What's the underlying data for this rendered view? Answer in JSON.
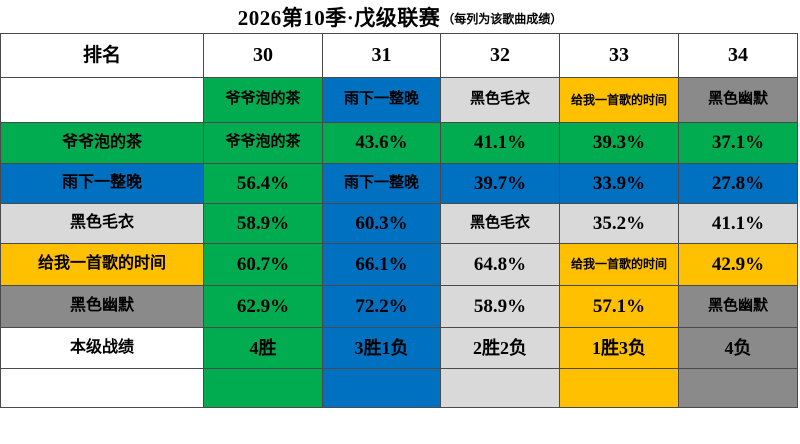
{
  "title": {
    "main": "2026第10季·戊级联赛",
    "note": "（每列为该歌曲成绩）"
  },
  "colors": {
    "white": "#FFFFFF",
    "green": "#00AC4F",
    "blue": "#0070C0",
    "lgray": "#D9D9D9",
    "gold": "#FFC000",
    "dgray": "#8A8A8A",
    "border": "#4A4A4A",
    "text": "#000000"
  },
  "header": {
    "rank_label": "排名",
    "ranks": [
      "30",
      "31",
      "32",
      "33",
      "34"
    ]
  },
  "songs": [
    {
      "rank": "30",
      "name": "爷爷泡的茶",
      "color": "green",
      "result": "4胜"
    },
    {
      "rank": "31",
      "name": "雨下一整晚",
      "color": "blue",
      "result": "3胜1负"
    },
    {
      "rank": "32",
      "name": "黑色毛衣",
      "color": "lgray",
      "result": "2胜2负"
    },
    {
      "rank": "33",
      "name": "给我一首歌的时间",
      "color": "gold",
      "result": "1胜3负"
    },
    {
      "rank": "34",
      "name": "黑色幽默",
      "color": "dgray",
      "result": "4负"
    }
  ],
  "table": {
    "rows": [
      {
        "label": {
          "text": "",
          "color": "white"
        },
        "cells": [
          {
            "text": "爷爷泡的茶",
            "color": "green"
          },
          {
            "text": "雨下一整晚",
            "color": "blue"
          },
          {
            "text": "黑色毛衣",
            "color": "lgray"
          },
          {
            "text": "给我一首歌的时间",
            "color": "gold"
          },
          {
            "text": "黑色幽默",
            "color": "dgray"
          }
        ]
      },
      {
        "label": {
          "text": "爷爷泡的茶",
          "color": "green"
        },
        "cells": [
          {
            "text": "爷爷泡的茶",
            "color": "green"
          },
          {
            "text": "43.6%",
            "color": "green"
          },
          {
            "text": "41.1%",
            "color": "green"
          },
          {
            "text": "39.3%",
            "color": "green"
          },
          {
            "text": "37.1%",
            "color": "green"
          }
        ]
      },
      {
        "label": {
          "text": "雨下一整晚",
          "color": "blue"
        },
        "cells": [
          {
            "text": "56.4%",
            "color": "green"
          },
          {
            "text": "雨下一整晚",
            "color": "blue"
          },
          {
            "text": "39.7%",
            "color": "blue"
          },
          {
            "text": "33.9%",
            "color": "blue"
          },
          {
            "text": "27.8%",
            "color": "blue"
          }
        ]
      },
      {
        "label": {
          "text": "黑色毛衣",
          "color": "lgray"
        },
        "cells": [
          {
            "text": "58.9%",
            "color": "green"
          },
          {
            "text": "60.3%",
            "color": "blue"
          },
          {
            "text": "黑色毛衣",
            "color": "lgray"
          },
          {
            "text": "35.2%",
            "color": "lgray"
          },
          {
            "text": "41.1%",
            "color": "lgray"
          }
        ]
      },
      {
        "label": {
          "text": "给我一首歌的时间",
          "color": "gold"
        },
        "cells": [
          {
            "text": "60.7%",
            "color": "green"
          },
          {
            "text": "66.1%",
            "color": "blue"
          },
          {
            "text": "64.8%",
            "color": "lgray"
          },
          {
            "text": "给我一首歌的时间",
            "color": "gold"
          },
          {
            "text": "42.9%",
            "color": "gold"
          }
        ]
      },
      {
        "label": {
          "text": "黑色幽默",
          "color": "dgray"
        },
        "cells": [
          {
            "text": "62.9%",
            "color": "green"
          },
          {
            "text": "72.2%",
            "color": "blue"
          },
          {
            "text": "58.9%",
            "color": "lgray"
          },
          {
            "text": "57.1%",
            "color": "gold"
          },
          {
            "text": "黑色幽默",
            "color": "dgray"
          }
        ]
      },
      {
        "label": {
          "text": "本级战绩",
          "color": "white"
        },
        "cells": [
          {
            "text": "4胜",
            "color": "green"
          },
          {
            "text": "3胜1负",
            "color": "blue"
          },
          {
            "text": "2胜2负",
            "color": "lgray"
          },
          {
            "text": "1胜3负",
            "color": "gold"
          },
          {
            "text": "4负",
            "color": "dgray"
          }
        ]
      },
      {
        "label": {
          "text": "",
          "color": "white"
        },
        "cells": [
          {
            "text": "",
            "color": "green"
          },
          {
            "text": "",
            "color": "blue"
          },
          {
            "text": "",
            "color": "lgray"
          },
          {
            "text": "",
            "color": "gold"
          },
          {
            "text": "",
            "color": "dgray"
          }
        ]
      }
    ]
  },
  "chart_data": {
    "type": "table",
    "title": "2026第10季·戊级联赛（每列为该歌曲成绩）",
    "columns": [
      "排名",
      "30",
      "31",
      "32",
      "33",
      "34"
    ],
    "column_songs": [
      "爷爷泡的茶",
      "雨下一整晚",
      "黑色毛衣",
      "给我一首歌的时间",
      "黑色幽默"
    ],
    "matrix_percent_rows": [
      {
        "label": "爷爷泡的茶",
        "values": [
          null,
          43.6,
          41.1,
          39.3,
          37.1
        ]
      },
      {
        "label": "雨下一整晚",
        "values": [
          56.4,
          null,
          39.7,
          33.9,
          27.8
        ]
      },
      {
        "label": "黑色毛衣",
        "values": [
          58.9,
          60.3,
          null,
          35.2,
          41.1
        ]
      },
      {
        "label": "给我一首歌的时间",
        "values": [
          60.7,
          66.1,
          64.8,
          null,
          42.9
        ]
      },
      {
        "label": "黑色幽默",
        "values": [
          62.9,
          72.2,
          58.9,
          57.1,
          null
        ]
      }
    ],
    "results_row": {
      "label": "本级战绩",
      "values": [
        "4胜",
        "3胜1负",
        "2胜2负",
        "1胜3负",
        "4负"
      ]
    }
  }
}
